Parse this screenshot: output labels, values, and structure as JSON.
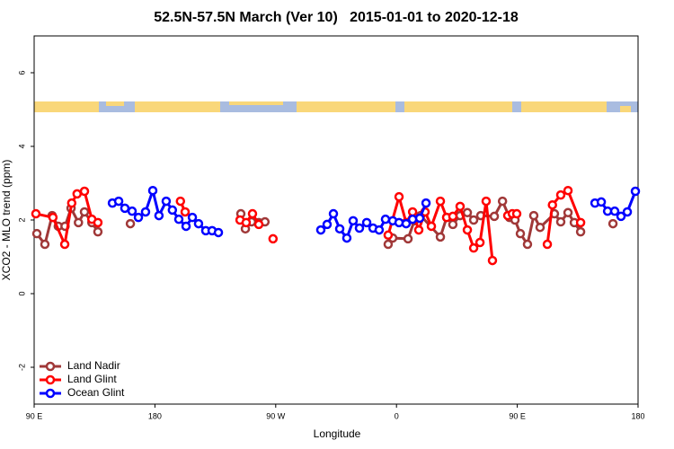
{
  "chart_data": {
    "type": "line",
    "title": "52.5N-57.5N March (Ver 10)   2015-01-01 to 2020-12-18",
    "x_label": "Longitude",
    "y_label": "XCO2 - MLO trend (ppm)",
    "xlim": [
      90,
      540
    ],
    "ylim": [
      -3,
      7
    ],
    "xticks": [
      {
        "value": 90,
        "label": "90 E"
      },
      {
        "value": 180,
        "label": "180"
      },
      {
        "value": 270,
        "label": "90 W"
      },
      {
        "value": 360,
        "label": "0"
      },
      {
        "value": 450,
        "label": "90 E"
      },
      {
        "value": 540,
        "label": "180"
      }
    ],
    "yticks": [
      -2,
      0,
      2,
      4,
      6
    ],
    "legend": "bottom-left",
    "series": [
      {
        "name": "Land Nadir",
        "color": "#a03838",
        "x": [
          92,
          98,
          103.4,
          108,
          113,
          117.5,
          123,
          127.5,
          133,
          137.5,
          null,
          161.7,
          null,
          244,
          247.4,
          252,
          257.4,
          262,
          null,
          353.8,
          357.2,
          368.6,
          373.3,
          378,
          392.7,
          397.4,
          402,
          407.4,
          412.8,
          417.5,
          422.8,
          432.9,
          439,
          444.2,
          448.3,
          452.3,
          457.6,
          462.3,
          467,
          477.7,
          482.4,
          487.8,
          492.5,
          497.2,
          null,
          521.3
        ],
        "values": [
          1.63,
          1.34,
          2.12,
          1.83,
          1.83,
          2.32,
          1.93,
          2.22,
          1.93,
          1.68,
          null,
          1.9,
          null,
          2.17,
          1.76,
          1.95,
          1.93,
          1.95,
          null,
          1.34,
          1.51,
          1.49,
          1.98,
          2.12,
          1.54,
          2.07,
          1.88,
          2.12,
          2.2,
          2.0,
          2.12,
          2.1,
          2.51,
          2.07,
          2.0,
          1.63,
          1.34,
          2.12,
          1.8,
          2.17,
          1.95,
          2.2,
          1.93,
          1.68,
          null,
          1.9
        ]
      },
      {
        "name": "Land Glint",
        "color": "#ff0000",
        "x": [
          91.3,
          104,
          112.8,
          118,
          122,
          127.5,
          133,
          137.5,
          null,
          199,
          202.5,
          null,
          243.4,
          248,
          252.7,
          257.4,
          null,
          268,
          null,
          353.8,
          361.9,
          367.2,
          372,
          376.6,
          381.3,
          386,
          392.7,
          397.4,
          402,
          407.4,
          412.8,
          417.5,
          422.2,
          426.8,
          431.5,
          null,
          442.9,
          446.3,
          449.6,
          null,
          472.4,
          476.2,
          482.4,
          487.8,
          497.2
        ],
        "values": [
          2.17,
          2.07,
          1.34,
          2.46,
          2.71,
          2.78,
          2.02,
          1.93,
          null,
          2.51,
          2.22,
          null,
          2.0,
          1.93,
          2.17,
          1.88,
          null,
          1.49,
          null,
          1.59,
          2.63,
          1.93,
          2.22,
          1.73,
          2.22,
          1.83,
          2.51,
          2.07,
          2.1,
          2.37,
          1.73,
          1.24,
          1.39,
          2.51,
          0.9,
          null,
          2.12,
          2.17,
          2.17,
          null,
          1.34,
          2.41,
          2.68,
          2.8,
          1.93
        ]
      },
      {
        "name": "Ocean Glint",
        "color": "#0000ff",
        "x": [
          148.3,
          153,
          157.6,
          163,
          167.7,
          173,
          178.4,
          183,
          188.4,
          193,
          197.8,
          203.2,
          207.9,
          212.5,
          217.9,
          222.6,
          227.3,
          null,
          303.6,
          308.3,
          313,
          317.7,
          323,
          327.7,
          332.4,
          337.8,
          342.5,
          347.1,
          351.8,
          357.2,
          361.9,
          367.2,
          372,
          377.3,
          382,
          null,
          507.9,
          512.6,
          517.3,
          522.6,
          527.3,
          532,
          538
        ],
        "values": [
          2.46,
          2.51,
          2.32,
          2.24,
          2.07,
          2.22,
          2.8,
          2.12,
          2.51,
          2.27,
          2.02,
          1.83,
          2.07,
          1.9,
          1.71,
          1.71,
          1.66,
          null,
          1.73,
          1.88,
          2.17,
          1.76,
          1.51,
          1.98,
          1.78,
          1.93,
          1.78,
          1.73,
          2.02,
          1.98,
          1.93,
          1.9,
          2.02,
          2.05,
          2.46,
          null,
          2.46,
          2.49,
          2.24,
          2.24,
          2.1,
          2.22,
          2.78
        ]
      }
    ]
  }
}
